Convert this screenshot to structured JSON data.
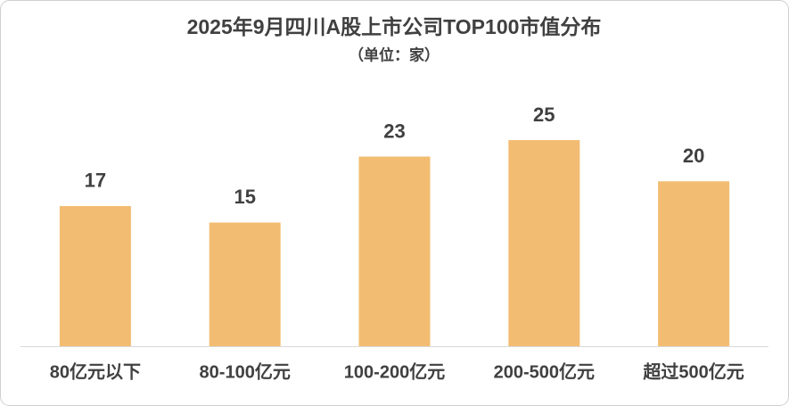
{
  "chart_data": {
    "type": "bar",
    "title": "2025年9月四川A股上市公司TOP100市值分布",
    "subtitle": "（单位：家）",
    "categories": [
      "80亿元以下",
      "80-100亿元",
      "100-200亿元",
      "200-500亿元",
      "超过500亿元"
    ],
    "values": [
      17,
      15,
      23,
      25,
      20
    ],
    "color": "#f2bd72"
  }
}
